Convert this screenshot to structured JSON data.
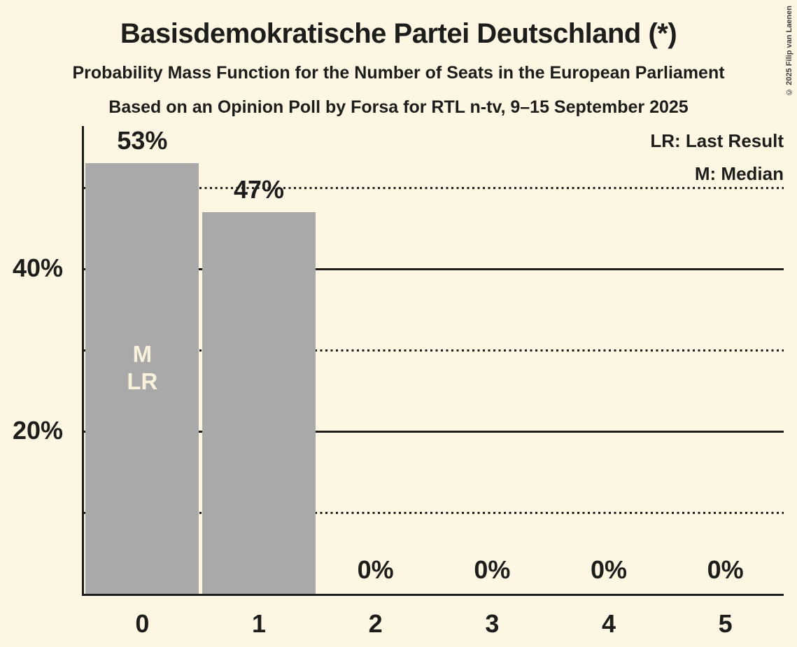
{
  "header": {
    "title": "Basisdemokratische Partei Deutschland (*)",
    "subtitle": "Probability Mass Function for the Number of Seats in the European Parliament",
    "source_line": "Based on an Opinion Poll by Forsa for RTL n-tv, 9–15 September 2025"
  },
  "legend": {
    "last_result": "LR: Last Result",
    "median": "M: Median"
  },
  "copyright": "© 2025 Filip van Laenen",
  "colors": {
    "background": "#fdf6e2",
    "bar": "#a9a9a9",
    "text": "#1d1d1b",
    "line": "#1d1d1b",
    "bar_annotation_text": "#f8f1dc",
    "copyright_text": "#3f3f3f"
  },
  "chart_data": {
    "type": "bar",
    "title": "Basisdemokratische Partei Deutschland (*)",
    "xlabel": "",
    "ylabel": "",
    "categories": [
      "0",
      "1",
      "2",
      "3",
      "4",
      "5"
    ],
    "values": [
      53,
      47,
      0,
      0,
      0,
      0
    ],
    "value_labels": [
      "53%",
      "47%",
      "0%",
      "0%",
      "0%",
      "0%"
    ],
    "ylim": [
      0,
      57.5
    ],
    "y_ticks": [
      {
        "label": "40%",
        "percent": 40
      },
      {
        "label": "20%",
        "percent": 20
      }
    ],
    "gridlines": [
      {
        "percent": 50,
        "style": "dotted"
      },
      {
        "percent": 40,
        "style": "solid"
      },
      {
        "percent": 30,
        "style": "dotted"
      },
      {
        "percent": 20,
        "style": "solid"
      },
      {
        "percent": 10,
        "style": "dotted"
      }
    ],
    "legend_position": "top-right",
    "grid": "horizontal-only",
    "annotations": [
      {
        "bar_index": 0,
        "lines": [
          "M",
          "LR"
        ],
        "meaning": "Median and Last Result at 0 seats"
      }
    ]
  }
}
